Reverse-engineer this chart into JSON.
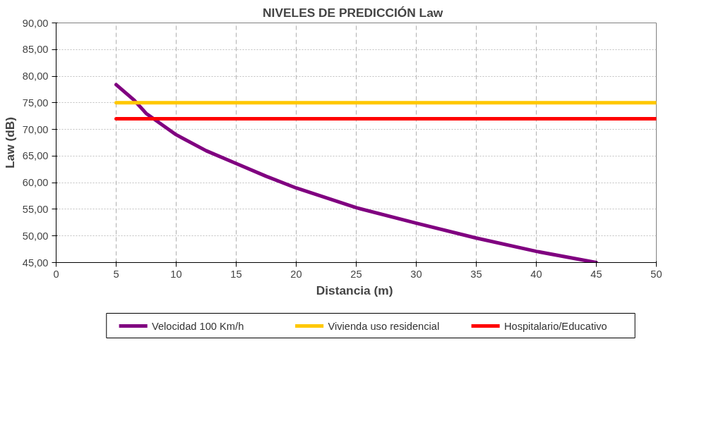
{
  "chart_data": {
    "type": "line",
    "title": "NIVELES  DE PREDICCIÓN  Law",
    "xlabel": "Distancia  (m)",
    "ylabel": "Law (dB)",
    "xlim": [
      0,
      50
    ],
    "xticks": [
      0,
      5,
      10,
      15,
      20,
      25,
      30,
      35,
      40,
      45,
      50
    ],
    "ylim": [
      45,
      90
    ],
    "yticks": [
      {
        "value": 45,
        "label": "45,00"
      },
      {
        "value": 50,
        "label": "50,00"
      },
      {
        "value": 55,
        "label": "55,00"
      },
      {
        "value": 60,
        "label": "60,00"
      },
      {
        "value": 65,
        "label": "65,00"
      },
      {
        "value": 70,
        "label": "70,00"
      },
      {
        "value": 75,
        "label": "75,00"
      },
      {
        "value": 80,
        "label": "80,00"
      },
      {
        "value": 85,
        "label": "85,00"
      },
      {
        "value": 90,
        "label": "90,00"
      }
    ],
    "grid": true,
    "legend": "bottom",
    "marker": "none",
    "line_style": "solid",
    "series": [
      {
        "name": "Velocidad 100 Km/h",
        "color": "#800080",
        "x": [
          5,
          6.5,
          7.5,
          10,
          12.5,
          15,
          17.5,
          20,
          25,
          30,
          35,
          40,
          45
        ],
        "values": [
          78.4,
          75.5,
          73.0,
          69.0,
          66.0,
          63.6,
          61.2,
          59.0,
          55.3,
          52.4,
          49.6,
          47.1,
          45.0
        ]
      },
      {
        "name": "Vivienda uso residencial",
        "color": "#ffc800",
        "x": [
          5,
          50
        ],
        "values": [
          75,
          75
        ]
      },
      {
        "name": "Hospitalario/Educativo",
        "color": "#ff0000",
        "x": [
          5,
          50
        ],
        "values": [
          72,
          72
        ]
      }
    ]
  }
}
